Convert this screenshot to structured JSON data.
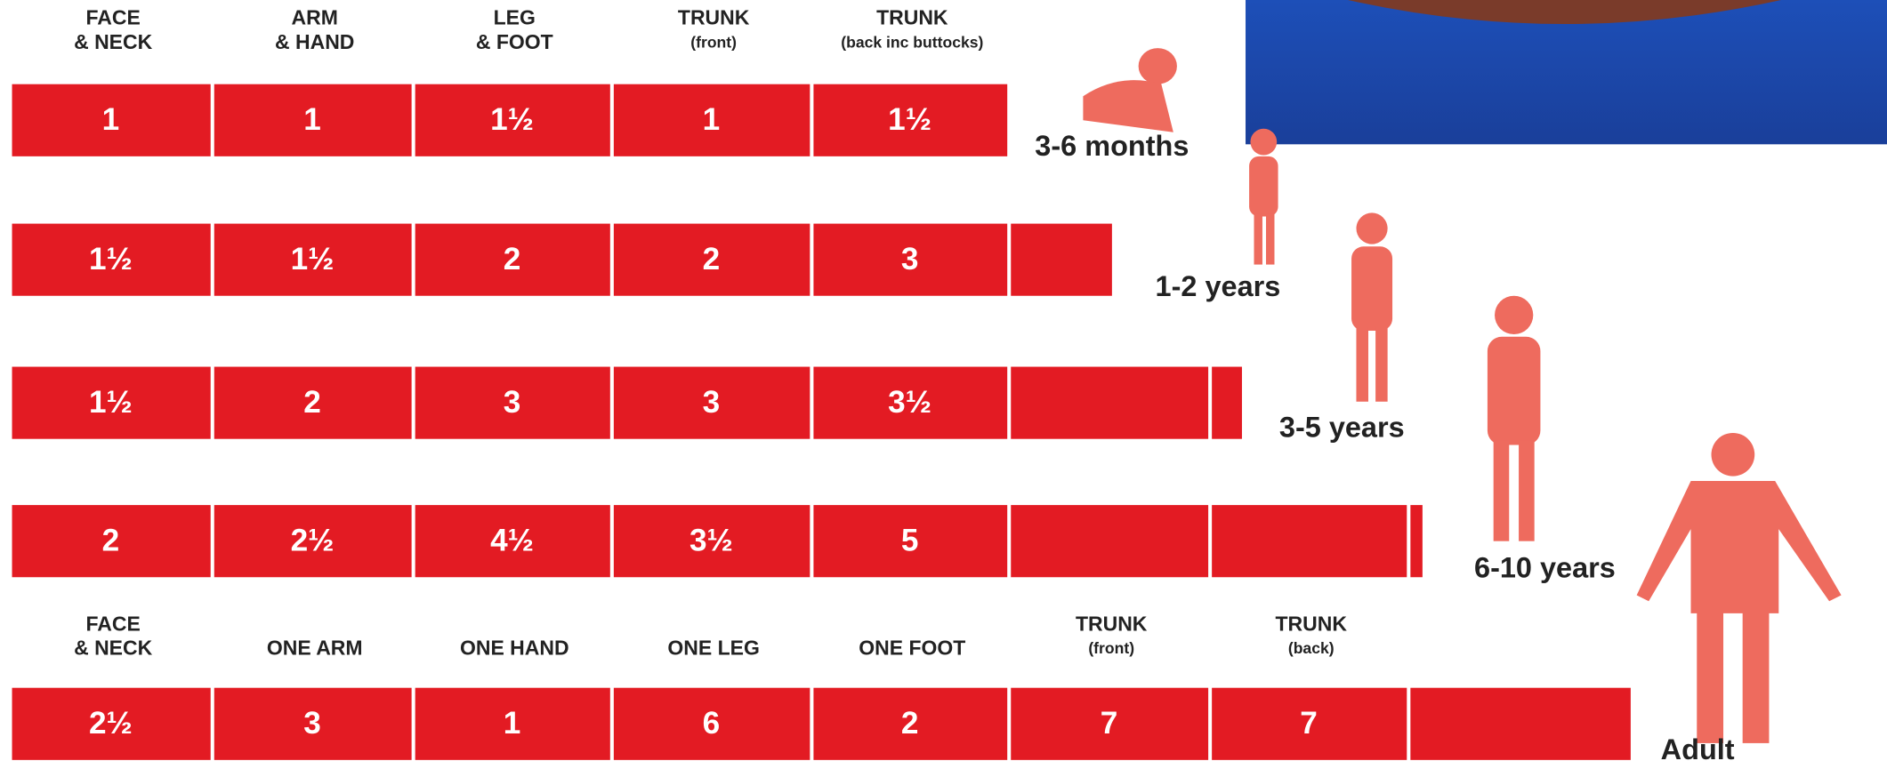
{
  "header": {
    "columns": [
      [
        "FACE",
        "& NECK"
      ],
      [
        "ARM",
        "& HAND"
      ],
      [
        "LEG",
        "& FOOT"
      ],
      [
        "TRUNK",
        "(front)"
      ],
      [
        "TRUNK",
        "(back inc buttocks)"
      ]
    ]
  },
  "rows": [
    {
      "age": "3-6 months",
      "values": [
        "1",
        "1",
        "1½",
        "1",
        "1½"
      ]
    },
    {
      "age": "1-2 years",
      "values": [
        "1½",
        "1½",
        "2",
        "2",
        "3"
      ]
    },
    {
      "age": "3-5 years",
      "values": [
        "1½",
        "2",
        "3",
        "3",
        "3½"
      ]
    },
    {
      "age": "6-10 years",
      "values": [
        "2",
        "2½",
        "4½",
        "3½",
        "5"
      ]
    }
  ],
  "adult": {
    "columns": [
      [
        "FACE",
        "& NECK"
      ],
      [
        "ONE ARM"
      ],
      [
        "ONE HAND"
      ],
      [
        "ONE LEG"
      ],
      [
        "ONE FOOT"
      ],
      [
        "TRUNK",
        "(front)"
      ],
      [
        "TRUNK",
        "(back)"
      ]
    ],
    "age": "Adult",
    "values": [
      "2½",
      "3",
      "1",
      "6",
      "2",
      "7",
      "7"
    ]
  }
}
